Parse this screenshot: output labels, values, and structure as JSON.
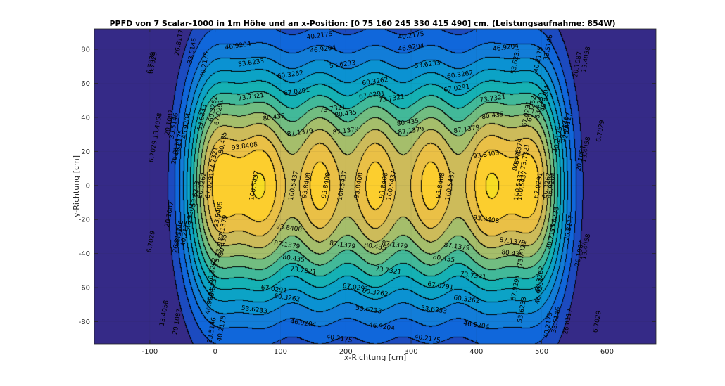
{
  "chart_data": {
    "type": "heatmap",
    "subtype": "filled-contour",
    "title": "PPFD von 7 Scalar-1000 in 1m Höhe und an x-Position: [0   75  160  245  330  415  490] cm. (Leistungsaufnahme: 854W)",
    "xlabel": "x-Richtung [cm]",
    "ylabel": "y-Richtung [cm]",
    "xlim": [
      -185,
      675
    ],
    "ylim": [
      -93,
      92
    ],
    "x_ticks": [
      -100,
      0,
      100,
      200,
      300,
      400,
      500,
      600
    ],
    "y_ticks": [
      -80,
      -60,
      -40,
      -20,
      0,
      20,
      40,
      60,
      80
    ],
    "lamp_x_positions": [
      0,
      75,
      160,
      245,
      330,
      415,
      490
    ],
    "contour_levels": [
      6.7029,
      13.4058,
      20.1087,
      26.8117,
      33.5146,
      40.2175,
      46.9204,
      53.6233,
      60.3262,
      67.0291,
      73.7321,
      80.435,
      87.1379,
      93.8408,
      100.5437
    ],
    "colormap": "parula",
    "grid": true,
    "contour_labels": [
      {
        "text": "40.2175",
        "x": 160,
        "y": 88
      },
      {
        "text": "40.2175",
        "x": 300,
        "y": 88
      },
      {
        "text": "46.9204",
        "x": 35,
        "y": 82
      },
      {
        "text": "46.9204",
        "x": 165,
        "y": 80
      },
      {
        "text": "46.9204",
        "x": 300,
        "y": 81
      },
      {
        "text": "46.9204",
        "x": 445,
        "y": 81
      },
      {
        "text": "53.6233",
        "x": 55,
        "y": 72
      },
      {
        "text": "53.6233",
        "x": 195,
        "y": 71
      },
      {
        "text": "53.6233",
        "x": 325,
        "y": 71
      },
      {
        "text": "53.6233",
        "x": 460,
        "y": 73
      },
      {
        "text": "60.3262",
        "x": 115,
        "y": 65
      },
      {
        "text": "60.3262",
        "x": 245,
        "y": 61
      },
      {
        "text": "60.3262",
        "x": 375,
        "y": 65
      },
      {
        "text": "67.0291",
        "x": 125,
        "y": 55
      },
      {
        "text": "67.0291",
        "x": 240,
        "y": 53
      },
      {
        "text": "67.0291",
        "x": 370,
        "y": 57
      },
      {
        "text": "73.7321",
        "x": 55,
        "y": 52
      },
      {
        "text": "73.7321",
        "x": 180,
        "y": 45
      },
      {
        "text": "73.7321",
        "x": 270,
        "y": 51
      },
      {
        "text": "73.7321",
        "x": 425,
        "y": 51
      },
      {
        "text": "80.435",
        "x": 90,
        "y": 40
      },
      {
        "text": "80.435",
        "x": 200,
        "y": 42
      },
      {
        "text": "80.435",
        "x": 295,
        "y": 37
      },
      {
        "text": "80.435",
        "x": 425,
        "y": 41
      },
      {
        "text": "87.1379",
        "x": 130,
        "y": 31
      },
      {
        "text": "87.1379",
        "x": 200,
        "y": 32
      },
      {
        "text": "87.1379",
        "x": 300,
        "y": 32
      },
      {
        "text": "87.1379",
        "x": 385,
        "y": 33
      },
      {
        "text": "93.8408",
        "x": 45,
        "y": 23
      },
      {
        "text": "93.8408",
        "x": 415,
        "y": 18
      },
      {
        "text": "93.8408",
        "x": 113,
        "y": -25
      },
      {
        "text": "93.8408",
        "x": 415,
        "y": -20
      },
      {
        "text": "100.5437",
        "x": 60,
        "y": 0
      },
      {
        "text": "100.5437",
        "x": 120,
        "y": 0
      },
      {
        "text": "100.5437",
        "x": 195,
        "y": 0
      },
      {
        "text": "100.5437",
        "x": 270,
        "y": 0
      },
      {
        "text": "100.5437",
        "x": 360,
        "y": 0
      },
      {
        "text": "100.5437",
        "x": 470,
        "y": 0
      },
      {
        "text": "93.8408",
        "x": 140,
        "y": 0
      },
      {
        "text": "93.8408",
        "x": 220,
        "y": 0
      },
      {
        "text": "93.8408",
        "x": 170,
        "y": 0
      },
      {
        "text": "93.8408",
        "x": 258,
        "y": 0
      },
      {
        "text": "93.8408",
        "x": 345,
        "y": 0
      },
      {
        "text": "87.1379",
        "x": 110,
        "y": -35
      },
      {
        "text": "87.1379",
        "x": 195,
        "y": -35
      },
      {
        "text": "87.1379",
        "x": 275,
        "y": -35
      },
      {
        "text": "87.1379",
        "x": 370,
        "y": -36
      },
      {
        "text": "80.435",
        "x": 120,
        "y": -43
      },
      {
        "text": "80.435",
        "x": 245,
        "y": -36
      },
      {
        "text": "80.435",
        "x": 350,
        "y": -43
      },
      {
        "text": "73.7321",
        "x": 135,
        "y": -50
      },
      {
        "text": "73.7321",
        "x": 265,
        "y": -50
      },
      {
        "text": "73.7321",
        "x": 395,
        "y": -53
      },
      {
        "text": "67.0291",
        "x": 90,
        "y": -61
      },
      {
        "text": "67.0291",
        "x": 215,
        "y": -60
      },
      {
        "text": "67.0291",
        "x": 345,
        "y": -59
      },
      {
        "text": "60.3262",
        "x": 110,
        "y": -66
      },
      {
        "text": "60.3262",
        "x": 245,
        "y": -63
      },
      {
        "text": "60.3262",
        "x": 385,
        "y": -67
      },
      {
        "text": "53.6233",
        "x": 60,
        "y": -73
      },
      {
        "text": "53.6233",
        "x": 235,
        "y": -73
      },
      {
        "text": "53.6233",
        "x": 335,
        "y": -73
      },
      {
        "text": "53.6233",
        "x": 470,
        "y": -73
      },
      {
        "text": "46.9204",
        "x": 135,
        "y": -81
      },
      {
        "text": "46.9204",
        "x": 255,
        "y": -83
      },
      {
        "text": "46.9204",
        "x": 400,
        "y": -82
      },
      {
        "text": "40.2175",
        "x": 190,
        "y": -90
      },
      {
        "text": "40.2175",
        "x": 325,
        "y": -90
      },
      {
        "text": "6.7029",
        "x": -95,
        "y": 72
      },
      {
        "text": "6.7029",
        "x": -95,
        "y": 20
      },
      {
        "text": "6.7029",
        "x": -98,
        "y": -33
      },
      {
        "text": "6.7029",
        "x": 590,
        "y": 32
      },
      {
        "text": "6.7029",
        "x": 585,
        "y": -80
      },
      {
        "text": "6.7029",
        "x": -98,
        "y": 72
      },
      {
        "text": "13.4058",
        "x": -88,
        "y": 35
      },
      {
        "text": "13.4058",
        "x": -78,
        "y": -75
      },
      {
        "text": "13.4058",
        "x": 568,
        "y": 74
      },
      {
        "text": "13.4058",
        "x": 568,
        "y": 21
      },
      {
        "text": "13.4058",
        "x": 568,
        "y": -36
      },
      {
        "text": "20.1087",
        "x": -70,
        "y": 37
      },
      {
        "text": "20.1087",
        "x": -70,
        "y": -17
      },
      {
        "text": "20.1087",
        "x": -58,
        "y": -80
      },
      {
        "text": "20.1087",
        "x": 555,
        "y": 71
      },
      {
        "text": "20.1087",
        "x": 560,
        "y": 16
      },
      {
        "text": "20.1087",
        "x": 558,
        "y": -40
      },
      {
        "text": "26.8117",
        "x": -55,
        "y": 84
      },
      {
        "text": "26.8117",
        "x": -60,
        "y": 20
      },
      {
        "text": "26.8117",
        "x": -58,
        "y": -32
      },
      {
        "text": "26.8117",
        "x": 540,
        "y": 35
      },
      {
        "text": "26.8117",
        "x": 542,
        "y": -25
      },
      {
        "text": "26.8117",
        "x": 540,
        "y": -80
      },
      {
        "text": "33.5146",
        "x": -35,
        "y": 79
      },
      {
        "text": "33.5146",
        "x": -63,
        "y": 35
      },
      {
        "text": "33.5146",
        "x": -55,
        "y": -28
      },
      {
        "text": "33.5146",
        "x": -5,
        "y": -85
      },
      {
        "text": "33.5146",
        "x": 510,
        "y": 81
      },
      {
        "text": "33.5146",
        "x": 535,
        "y": 33
      },
      {
        "text": "33.5146",
        "x": 522,
        "y": -79
      },
      {
        "text": "40.2175",
        "x": -16,
        "y": 71
      },
      {
        "text": "40.2175",
        "x": -55,
        "y": 25
      },
      {
        "text": "40.2175",
        "x": -46,
        "y": -28
      },
      {
        "text": "40.2175",
        "x": 10,
        "y": -84
      },
      {
        "text": "40.2175",
        "x": 495,
        "y": 74
      },
      {
        "text": "40.2175",
        "x": 525,
        "y": 27
      },
      {
        "text": "40.2175",
        "x": 515,
        "y": -30
      },
      {
        "text": "40.2175",
        "x": 510,
        "y": -82
      },
      {
        "text": "46.9204",
        "x": -44,
        "y": 35
      },
      {
        "text": "46.9204",
        "x": -38,
        "y": -18
      },
      {
        "text": "46.9204",
        "x": -8,
        "y": -68
      },
      {
        "text": "46.9204",
        "x": 505,
        "y": 51
      },
      {
        "text": "46.9204",
        "x": 515,
        "y": 0
      },
      {
        "text": "46.9204",
        "x": 497,
        "y": -62
      },
      {
        "text": "53.6233",
        "x": -20,
        "y": 40
      },
      {
        "text": "53.6233",
        "x": -30,
        "y": -5
      },
      {
        "text": "53.6233",
        "x": -3,
        "y": -60
      },
      {
        "text": "53.6233",
        "x": 497,
        "y": 47
      },
      {
        "text": "53.6233",
        "x": 520,
        "y": -20
      },
      {
        "text": "60.3262",
        "x": -3,
        "y": 45
      },
      {
        "text": "60.3262",
        "x": -20,
        "y": 0
      },
      {
        "text": "60.3262",
        "x": -4,
        "y": -50
      },
      {
        "text": "60.3262",
        "x": 485,
        "y": 45
      },
      {
        "text": "60.3262",
        "x": 508,
        "y": 0
      },
      {
        "text": "60.3262",
        "x": 497,
        "y": -55
      },
      {
        "text": "67.0291",
        "x": 6,
        "y": 43
      },
      {
        "text": "67.0291",
        "x": -8,
        "y": 0
      },
      {
        "text": "67.0291",
        "x": 477,
        "y": 42
      },
      {
        "text": "67.0291",
        "x": 495,
        "y": 0
      },
      {
        "text": "67.0291",
        "x": 460,
        "y": -60
      },
      {
        "text": "73.7321",
        "x": -2,
        "y": 15
      },
      {
        "text": "73.7321",
        "x": 5,
        "y": -40
      },
      {
        "text": "73.7321",
        "x": 475,
        "y": 17
      },
      {
        "text": "73.7321",
        "x": 470,
        "y": -40
      },
      {
        "text": "80.435",
        "x": 12,
        "y": 25
      },
      {
        "text": "80.435",
        "x": 12,
        "y": -35
      },
      {
        "text": "80.435",
        "x": 462,
        "y": 15
      },
      {
        "text": "80.435",
        "x": 455,
        "y": -40
      },
      {
        "text": "87.1379",
        "x": 12,
        "y": -25
      },
      {
        "text": "87.1379",
        "x": 465,
        "y": 20
      },
      {
        "text": "87.1379",
        "x": 455,
        "y": -33
      },
      {
        "text": "93.8408",
        "x": 5,
        "y": -17
      },
      {
        "text": "100.5437",
        "x": 465,
        "y": 0
      }
    ]
  }
}
